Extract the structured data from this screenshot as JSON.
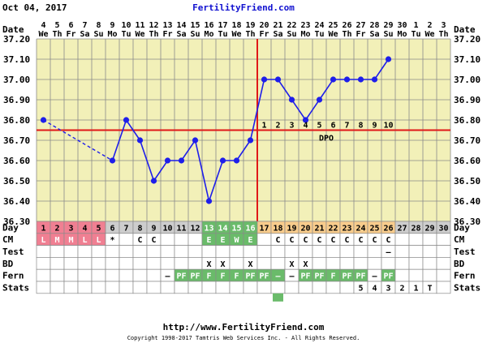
{
  "header": {
    "date": "Oct 04, 2017",
    "site": "FertilityFriend.com"
  },
  "footer": {
    "url": "http://www.FertilityFriend.com",
    "copyright": "Copyright 1998-2017 Tamtris Web Services Inc. - All Rights Reserved."
  },
  "row_labels": {
    "date": "Date",
    "day": "Day",
    "cm": "CM",
    "test": "Test",
    "bd": "BD",
    "fern": "Fern",
    "stats": "Stats"
  },
  "colors": {
    "grid_bg": "#f2f0b8",
    "grid_line": "#8a8a8a",
    "temp_line": "#1e1eea",
    "coverline": "#e01818",
    "menstrual": "#f07f92",
    "fertile": "#6abb6a",
    "luteal": "#f8cc8c",
    "day_gray": "#cdcdcd"
  },
  "dates": [
    {
      "day": "4",
      "dow": "We"
    },
    {
      "day": "5",
      "dow": "Th"
    },
    {
      "day": "6",
      "dow": "Fr"
    },
    {
      "day": "7",
      "dow": "Sa"
    },
    {
      "day": "8",
      "dow": "Su"
    },
    {
      "day": "9",
      "dow": "Mo"
    },
    {
      "day": "10",
      "dow": "Tu"
    },
    {
      "day": "11",
      "dow": "We"
    },
    {
      "day": "12",
      "dow": "Th"
    },
    {
      "day": "13",
      "dow": "Fr"
    },
    {
      "day": "14",
      "dow": "Sa"
    },
    {
      "day": "15",
      "dow": "Su"
    },
    {
      "day": "16",
      "dow": "Mo"
    },
    {
      "day": "17",
      "dow": "Tu"
    },
    {
      "day": "18",
      "dow": "We"
    },
    {
      "day": "19",
      "dow": "Th"
    },
    {
      "day": "20",
      "dow": "Fr"
    },
    {
      "day": "21",
      "dow": "Sa"
    },
    {
      "day": "22",
      "dow": "Su"
    },
    {
      "day": "23",
      "dow": "Mo"
    },
    {
      "day": "24",
      "dow": "Tu"
    },
    {
      "day": "25",
      "dow": "We"
    },
    {
      "day": "26",
      "dow": "Th"
    },
    {
      "day": "27",
      "dow": "Fr"
    },
    {
      "day": "28",
      "dow": "Sa"
    },
    {
      "day": "29",
      "dow": "Su"
    },
    {
      "day": "30",
      "dow": "Mo"
    },
    {
      "day": "1",
      "dow": "Tu"
    },
    {
      "day": "2",
      "dow": "We"
    },
    {
      "day": "3",
      "dow": "Th"
    }
  ],
  "cycle_days": [
    "1",
    "2",
    "3",
    "4",
    "5",
    "6",
    "7",
    "8",
    "9",
    "10",
    "11",
    "12",
    "13",
    "14",
    "15",
    "16",
    "17",
    "18",
    "19",
    "20",
    "21",
    "22",
    "23",
    "24",
    "25",
    "26",
    "27",
    "28",
    "29",
    "30"
  ],
  "day_phase": [
    "m",
    "m",
    "m",
    "m",
    "m",
    "g",
    "g",
    "g",
    "g",
    "g",
    "g",
    "g",
    "f",
    "f",
    "f",
    "f",
    "l",
    "l",
    "l",
    "l",
    "l",
    "l",
    "l",
    "l",
    "l",
    "l",
    "g",
    "g",
    "g",
    "g"
  ],
  "cm": [
    "L",
    "M",
    "M",
    "L",
    "L",
    "*",
    "",
    "C",
    "C",
    "",
    "",
    "",
    "E",
    "E",
    "W",
    "E",
    "",
    "C",
    "C",
    "C",
    "C",
    "C",
    "C",
    "C",
    "C",
    "C",
    "",
    "",
    "",
    ""
  ],
  "test": [
    "",
    "",
    "",
    "",
    "",
    "",
    "",
    "",
    "",
    "",
    "",
    "",
    "",
    "",
    "",
    "",
    "",
    "",
    "",
    "",
    "",
    "",
    "",
    "",
    "",
    "–",
    "",
    "",
    "",
    ""
  ],
  "bd": [
    "",
    "",
    "",
    "",
    "",
    "",
    "",
    "",
    "",
    "",
    "",
    "",
    "X",
    "X",
    "",
    "X",
    "",
    "",
    "X",
    "X",
    "",
    "",
    "",
    "",
    "",
    "",
    "",
    "",
    "",
    ""
  ],
  "fern": [
    "",
    "",
    "",
    "",
    "",
    "",
    "",
    "",
    "",
    "–",
    "PF",
    "PF",
    "F",
    "F",
    "F",
    "PF",
    "PF",
    "–",
    "–",
    "PF",
    "PF",
    "F",
    "PF",
    "PF",
    "–",
    "PF",
    "",
    "",
    "",
    ""
  ],
  "fern_green": [
    false,
    false,
    false,
    false,
    false,
    false,
    false,
    false,
    false,
    false,
    true,
    true,
    true,
    true,
    true,
    true,
    true,
    true,
    false,
    true,
    true,
    true,
    true,
    true,
    false,
    true,
    false,
    false,
    false,
    false
  ],
  "stats": [
    "",
    "",
    "",
    "",
    "",
    "",
    "",
    "",
    "",
    "",
    "",
    "",
    "",
    "",
    "",
    "",
    "",
    "",
    "",
    "",
    "",
    "",
    "",
    "5",
    "4",
    "3",
    "2",
    "1",
    "T",
    ""
  ],
  "dpo_label": "DPO",
  "dpo_numbers": [
    "1",
    "2",
    "3",
    "4",
    "5",
    "6",
    "7",
    "8",
    "9",
    "10"
  ],
  "chart_data": {
    "type": "line",
    "title": "",
    "ylabel": "",
    "xlabel": "Day",
    "ylim": [
      36.3,
      37.2
    ],
    "yticks": [
      "36.30",
      "36.40",
      "36.50",
      "36.60",
      "36.70",
      "36.80",
      "36.90",
      "37.00",
      "37.10",
      "37.20"
    ],
    "x": [
      1,
      2,
      3,
      4,
      5,
      6,
      7,
      8,
      9,
      10,
      11,
      12,
      13,
      14,
      15,
      16,
      17,
      18,
      19,
      20,
      21,
      22,
      23,
      24,
      25,
      26,
      27,
      28,
      29,
      30
    ],
    "series": [
      {
        "values": [
          36.8,
          null,
          null,
          null,
          null,
          36.6,
          36.8,
          36.7,
          36.5,
          36.6,
          36.6,
          36.7,
          36.4,
          36.6,
          36.6,
          36.7,
          37.0,
          37.0,
          36.9,
          36.8,
          36.9,
          37.0,
          37.0,
          37.0,
          37.0,
          37.1,
          null,
          null,
          null,
          null
        ]
      }
    ],
    "dashed_segment": [
      1,
      6
    ],
    "coverline": 36.75,
    "ovulation_day": 16,
    "grid": true
  }
}
